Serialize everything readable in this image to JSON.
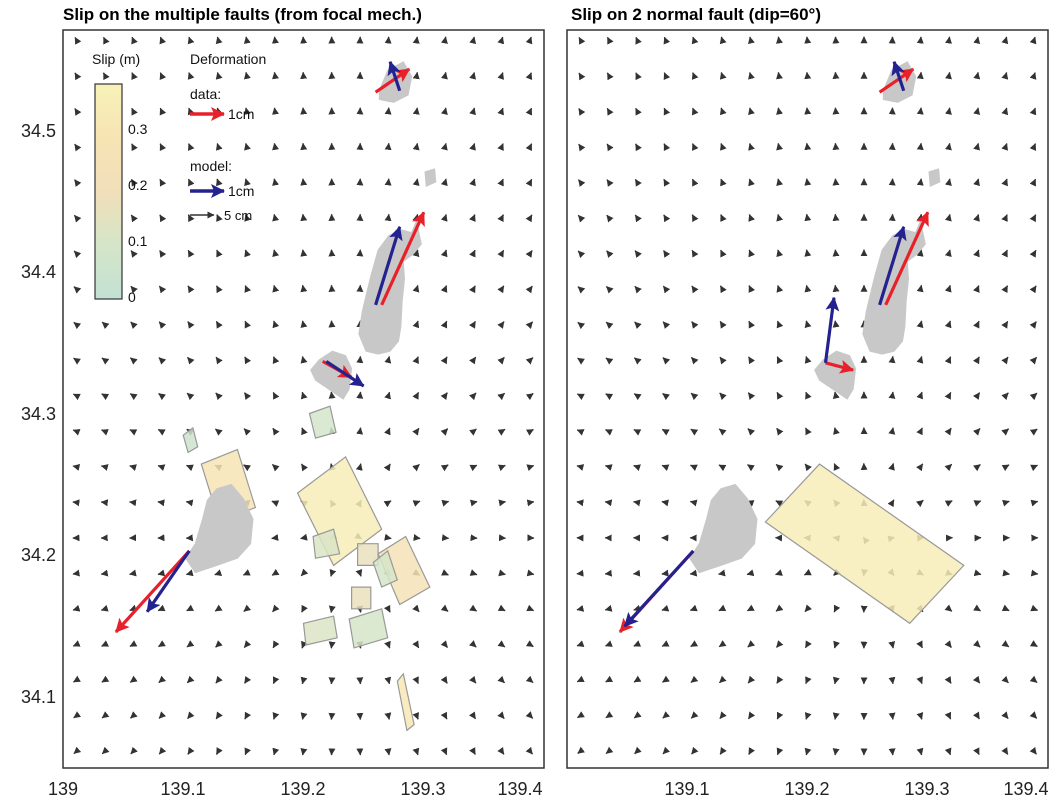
{
  "chart_data": [
    {
      "type": "vector-field-map",
      "title": "Slip on the multiple faults (from focal mech.)",
      "xlim": [
        139.0,
        139.4
      ],
      "ylim": [
        34.05,
        34.56
      ],
      "x_ticks": [
        "139",
        "139.1",
        "139.2",
        "139.3",
        "139.4"
      ],
      "y_ticks": [
        "34.1",
        "34.2",
        "34.3",
        "34.4",
        "34.5"
      ],
      "islands": [
        {
          "name": "",
          "points": [
            [
              139.263,
              34.518
            ],
            [
              139.27,
              34.532
            ],
            [
              139.283,
              34.538
            ],
            [
              139.29,
              34.528
            ],
            [
              139.287,
              34.515
            ],
            [
              139.275,
              34.51
            ],
            [
              139.263,
              34.512
            ]
          ]
        },
        {
          "name": "",
          "points": [
            [
              139.301,
              34.462
            ],
            [
              139.309,
              34.464
            ],
            [
              139.31,
              34.455
            ],
            [
              139.302,
              34.452
            ]
          ]
        },
        {
          "name": "",
          "points": [
            [
              139.29,
              34.42
            ],
            [
              139.294,
              34.428
            ],
            [
              139.298,
              34.412
            ],
            [
              139.291,
              34.405
            ],
            [
              139.283,
              34.4
            ],
            [
              139.284,
              34.388
            ],
            [
              139.282,
              34.372
            ],
            [
              139.281,
              34.355
            ],
            [
              139.279,
              34.345
            ],
            [
              139.272,
              34.338
            ],
            [
              139.262,
              34.336
            ],
            [
              139.252,
              34.338
            ],
            [
              139.246,
              34.35
            ],
            [
              139.249,
              34.366
            ],
            [
              139.256,
              34.39
            ],
            [
              139.262,
              34.408
            ],
            [
              139.271,
              34.418
            ],
            [
              139.281,
              34.422
            ]
          ]
        },
        {
          "name": "",
          "points": [
            [
              139.233,
              34.305
            ],
            [
              139.21,
              34.318
            ],
            [
              139.206,
              34.325
            ],
            [
              139.213,
              34.332
            ],
            [
              139.224,
              34.338
            ],
            [
              139.235,
              34.335
            ],
            [
              139.24,
              34.326
            ],
            [
              139.238,
              34.312
            ]
          ]
        },
        {
          "name": "",
          "points": [
            [
              139.12,
              34.235
            ],
            [
              139.128,
              34.243
            ],
            [
              139.14,
              34.246
            ],
            [
              139.15,
              34.236
            ],
            [
              139.158,
              34.222
            ],
            [
              139.156,
              34.205
            ],
            [
              139.145,
              34.195
            ],
            [
              139.128,
              34.19
            ],
            [
              139.11,
              34.185
            ],
            [
              139.102,
              34.195
            ],
            [
              139.11,
              34.205
            ],
            [
              139.116,
              34.222
            ]
          ]
        }
      ],
      "faults": [
        {
          "slip": 0.35,
          "corners": [
            [
              139.195,
              34.24
            ],
            [
              139.235,
              34.265
            ],
            [
              139.265,
              34.215
            ],
            [
              139.225,
              34.19
            ]
          ]
        },
        {
          "slip": 0.29,
          "corners": [
            [
              139.115,
              34.26
            ],
            [
              139.145,
              34.27
            ],
            [
              139.16,
              34.23
            ],
            [
              139.13,
              34.22
            ]
          ]
        },
        {
          "slip": 0.26,
          "corners": [
            [
              139.262,
              34.198
            ],
            [
              139.285,
              34.21
            ],
            [
              139.305,
              34.175
            ],
            [
              139.28,
              34.163
            ]
          ]
        },
        {
          "slip": 0.09,
          "corners": [
            [
              139.205,
              34.295
            ],
            [
              139.222,
              34.3
            ],
            [
              139.227,
              34.282
            ],
            [
              139.21,
              34.278
            ]
          ]
        },
        {
          "slip": 0.12,
          "corners": [
            [
              139.208,
              34.21
            ],
            [
              139.225,
              34.215
            ],
            [
              139.23,
              34.198
            ],
            [
              139.21,
              34.195
            ]
          ]
        },
        {
          "slip": 0.17,
          "corners": [
            [
              139.245,
              34.205
            ],
            [
              139.262,
              34.205
            ],
            [
              139.262,
              34.19
            ],
            [
              139.245,
              34.19
            ]
          ]
        },
        {
          "slip": 0.1,
          "corners": [
            [
              139.258,
              34.192
            ],
            [
              139.27,
              34.2
            ],
            [
              139.278,
              34.18
            ],
            [
              139.265,
              34.175
            ]
          ]
        },
        {
          "slip": 0.18,
          "corners": [
            [
              139.24,
              34.175
            ],
            [
              139.256,
              34.175
            ],
            [
              139.256,
              34.16
            ],
            [
              139.24,
              34.16
            ]
          ]
        },
        {
          "slip": 0.12,
          "corners": [
            [
              139.2,
              34.15
            ],
            [
              139.225,
              34.155
            ],
            [
              139.228,
              34.14
            ],
            [
              139.202,
              34.135
            ]
          ]
        },
        {
          "slip": 0.1,
          "corners": [
            [
              139.238,
              34.153
            ],
            [
              139.265,
              34.16
            ],
            [
              139.27,
              34.14
            ],
            [
              139.242,
              34.133
            ]
          ]
        },
        {
          "slip": 0.05,
          "corners": [
            [
              139.1,
              34.28
            ],
            [
              139.108,
              34.285
            ],
            [
              139.112,
              34.272
            ],
            [
              139.104,
              34.268
            ]
          ]
        },
        {
          "slip": 0.32,
          "corners": [
            [
              139.278,
              34.11
            ],
            [
              139.283,
              34.115
            ],
            [
              139.292,
              34.08
            ],
            [
              139.286,
              34.076
            ]
          ]
        }
      ],
      "data_vectors": [
        {
          "from": [
            139.26,
            34.517
          ],
          "to": [
            139.288,
            34.533
          ]
        },
        {
          "from": [
            139.265,
            34.37
          ],
          "to": [
            139.3,
            34.434
          ]
        },
        {
          "from": [
            139.216,
            34.331
          ],
          "to": [
            139.24,
            34.32
          ]
        },
        {
          "from": [
            139.105,
            34.2
          ],
          "to": [
            139.044,
            34.144
          ]
        }
      ],
      "model_vectors": [
        {
          "from": [
            139.28,
            34.518
          ],
          "to": [
            139.272,
            34.538
          ]
        },
        {
          "from": [
            139.26,
            34.37
          ],
          "to": [
            139.28,
            34.424
          ]
        },
        {
          "from": [
            139.219,
            34.331
          ],
          "to": [
            139.25,
            34.314
          ]
        },
        {
          "from": [
            139.105,
            34.2
          ],
          "to": [
            139.07,
            34.158
          ]
        }
      ],
      "colorbar": {
        "title": "Slip (m)",
        "min": 0,
        "max": 0.38,
        "ticks": [
          "0",
          "0.1",
          "0.2",
          "0.3"
        ]
      },
      "legend": {
        "title": "Deformation",
        "data_label": "data:",
        "data_scale": "1cm",
        "model_label": "model:",
        "model_scale": "1cm",
        "field_scale": "5 cm"
      }
    },
    {
      "type": "vector-field-map",
      "title": "Slip on 2 normal fault (dip=60°)",
      "xlim": [
        139.0,
        139.4
      ],
      "ylim": [
        34.05,
        34.56
      ],
      "x_ticks": [
        "139.1",
        "139.2",
        "139.3",
        "139.4"
      ],
      "islands": [
        {
          "name": "",
          "points": [
            [
              139.263,
              34.518
            ],
            [
              139.27,
              34.532
            ],
            [
              139.283,
              34.538
            ],
            [
              139.29,
              34.528
            ],
            [
              139.287,
              34.515
            ],
            [
              139.275,
              34.51
            ],
            [
              139.263,
              34.512
            ]
          ]
        },
        {
          "name": "",
          "points": [
            [
              139.301,
              34.462
            ],
            [
              139.309,
              34.464
            ],
            [
              139.31,
              34.455
            ],
            [
              139.302,
              34.452
            ]
          ]
        },
        {
          "name": "",
          "points": [
            [
              139.29,
              34.42
            ],
            [
              139.294,
              34.428
            ],
            [
              139.298,
              34.412
            ],
            [
              139.291,
              34.405
            ],
            [
              139.283,
              34.4
            ],
            [
              139.284,
              34.388
            ],
            [
              139.282,
              34.372
            ],
            [
              139.281,
              34.355
            ],
            [
              139.279,
              34.345
            ],
            [
              139.272,
              34.338
            ],
            [
              139.262,
              34.336
            ],
            [
              139.252,
              34.338
            ],
            [
              139.246,
              34.35
            ],
            [
              139.249,
              34.366
            ],
            [
              139.256,
              34.39
            ],
            [
              139.262,
              34.408
            ],
            [
              139.271,
              34.418
            ],
            [
              139.281,
              34.422
            ]
          ]
        },
        {
          "name": "",
          "points": [
            [
              139.233,
              34.305
            ],
            [
              139.21,
              34.318
            ],
            [
              139.206,
              34.325
            ],
            [
              139.213,
              34.332
            ],
            [
              139.224,
              34.338
            ],
            [
              139.235,
              34.335
            ],
            [
              139.24,
              34.326
            ],
            [
              139.238,
              34.312
            ]
          ]
        },
        {
          "name": "",
          "points": [
            [
              139.12,
              34.235
            ],
            [
              139.128,
              34.243
            ],
            [
              139.14,
              34.246
            ],
            [
              139.15,
              34.236
            ],
            [
              139.158,
              34.222
            ],
            [
              139.156,
              34.205
            ],
            [
              139.145,
              34.195
            ],
            [
              139.128,
              34.19
            ],
            [
              139.11,
              34.185
            ],
            [
              139.102,
              34.195
            ],
            [
              139.11,
              34.205
            ],
            [
              139.116,
              34.222
            ]
          ]
        }
      ],
      "faults": [
        {
          "slip": 0.35,
          "corners": [
            [
              139.165,
              34.22
            ],
            [
              139.285,
              34.15
            ],
            [
              139.33,
              34.19
            ],
            [
              139.21,
              34.26
            ]
          ]
        }
      ],
      "data_vectors": [
        {
          "from": [
            139.26,
            34.517
          ],
          "to": [
            139.288,
            34.533
          ]
        },
        {
          "from": [
            139.265,
            34.37
          ],
          "to": [
            139.3,
            34.434
          ]
        },
        {
          "from": [
            139.215,
            34.33
          ],
          "to": [
            139.238,
            34.325
          ]
        },
        {
          "from": [
            139.105,
            34.2
          ],
          "to": [
            139.044,
            34.144
          ]
        }
      ],
      "model_vectors": [
        {
          "from": [
            139.28,
            34.518
          ],
          "to": [
            139.272,
            34.538
          ]
        },
        {
          "from": [
            139.26,
            34.37
          ],
          "to": [
            139.28,
            34.424
          ]
        },
        {
          "from": [
            139.215,
            34.33
          ],
          "to": [
            139.222,
            34.375
          ]
        },
        {
          "from": [
            139.105,
            34.2
          ],
          "to": [
            139.048,
            34.148
          ]
        }
      ]
    }
  ]
}
